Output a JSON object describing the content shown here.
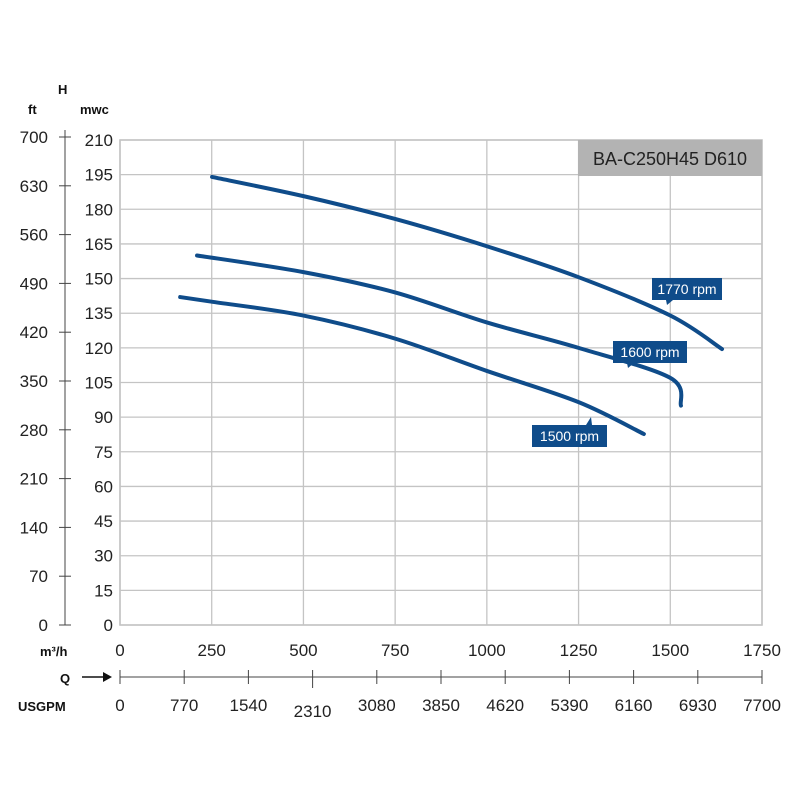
{
  "chart_data": {
    "type": "line",
    "title": "BA-C250H45 D610",
    "y_axis_symbol": "H",
    "y_unit_left": "ft",
    "y_unit_right": "mwc",
    "x_axis_symbol": "Q",
    "x_unit_top": "m³/h",
    "x_unit_bottom": "USGPM",
    "xlim": [
      0,
      1750
    ],
    "ylim": [
      0,
      210
    ],
    "grid": true,
    "x_ticks": [
      "0",
      "250",
      "500",
      "750",
      "1000",
      "1250",
      "1500",
      "1750"
    ],
    "y_ticks": [
      "0",
      "15",
      "30",
      "45",
      "60",
      "75",
      "90",
      "105",
      "120",
      "135",
      "150",
      "165",
      "180",
      "195",
      "210"
    ],
    "ft_ticks": [
      "0",
      "70",
      "140",
      "210",
      "280",
      "350",
      "420",
      "490",
      "560",
      "630",
      "700"
    ],
    "usgpm_ticks": [
      "0",
      "770",
      "1540",
      "2310",
      "3080",
      "3850",
      "4620",
      "5390",
      "6160",
      "6930",
      "7700"
    ],
    "color": "#0f4c8a",
    "series": [
      {
        "name": "1770 rpm",
        "x": [
          251,
          500,
          750,
          1000,
          1250,
          1500,
          1641
        ],
        "y": [
          194,
          185.7,
          175.8,
          164,
          150.6,
          134,
          119.5
        ]
      },
      {
        "name": "1600 rpm",
        "x": [
          210,
          500,
          750,
          1000,
          1250,
          1500,
          1529
        ],
        "y": [
          160,
          152.8,
          144,
          131,
          120,
          107,
          95
        ]
      },
      {
        "name": "1500 rpm",
        "x": [
          164,
          250,
          500,
          750,
          1000,
          1250,
          1428
        ],
        "y": [
          142,
          140,
          134,
          124,
          110,
          96.5,
          82.7
        ]
      }
    ]
  }
}
